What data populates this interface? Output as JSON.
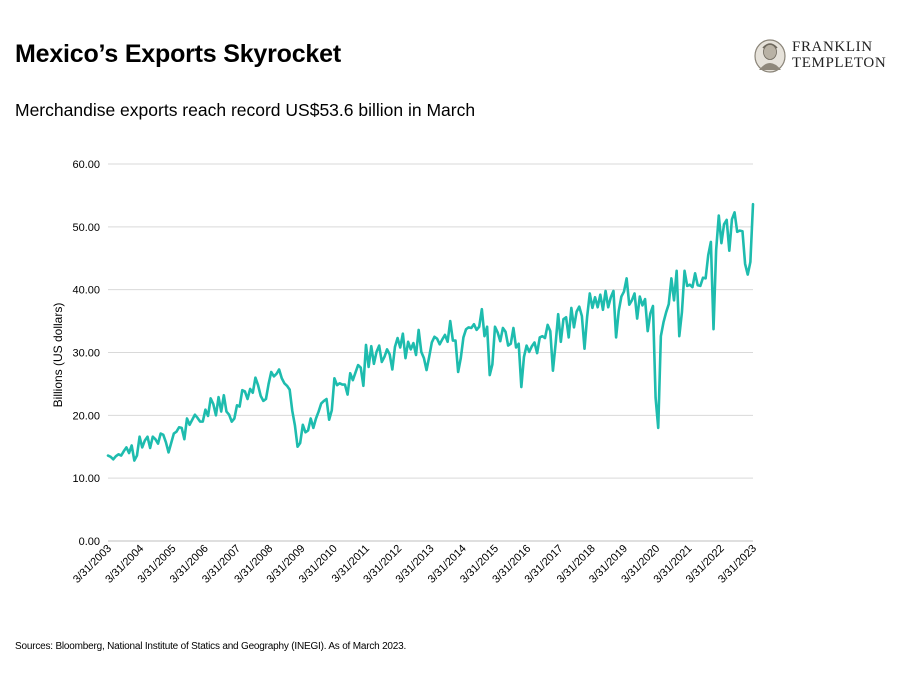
{
  "header": {
    "title": "Mexico’s Exports Skyrocket",
    "subtitle": "Merchandise exports reach record US$53.6 billion in March"
  },
  "logo": {
    "line1": "FRANKLIN",
    "line2": "TEMPLETON",
    "icon": "franklin-portrait-icon"
  },
  "footer": {
    "source": "Sources: Bloomberg, National Institute of Statics and Geography (INEGI). As of March 2023."
  },
  "colors": {
    "line": "#1ebcae",
    "grid": "#d9d9d9",
    "axis": "#bfbfbf"
  },
  "chart_data": {
    "type": "line",
    "title": "",
    "xlabel": "",
    "ylabel": "Billions (US dollars)",
    "ylim": [
      0,
      60
    ],
    "yticks": [
      "0.00",
      "10.00",
      "20.00",
      "30.00",
      "40.00",
      "50.00",
      "60.00"
    ],
    "grid": true,
    "x_start": "3/31/2003",
    "x_end": "3/31/2023",
    "frequency": "monthly",
    "xtick_labels": [
      "3/31/2003",
      "3/31/2004",
      "3/31/2005",
      "3/31/2006",
      "3/31/2007",
      "3/31/2008",
      "3/31/2009",
      "3/31/2010",
      "3/31/2011",
      "3/31/2012",
      "3/31/2013",
      "3/31/2014",
      "3/31/2015",
      "3/31/2016",
      "3/31/2017",
      "3/31/2018",
      "3/31/2019",
      "3/31/2020",
      "3/31/2021",
      "3/31/2022",
      "3/31/2023"
    ],
    "series": [
      {
        "name": "Merchandise exports",
        "values": [
          13.6,
          13.4,
          13.0,
          13.5,
          13.8,
          13.6,
          14.3,
          14.9,
          14.0,
          15.2,
          12.8,
          13.6,
          16.6,
          14.9,
          16.0,
          16.6,
          14.8,
          16.6,
          16.2,
          15.5,
          17.1,
          16.9,
          15.7,
          14.1,
          15.6,
          17.1,
          17.4,
          18.1,
          18.0,
          16.2,
          19.5,
          18.5,
          19.3,
          20.1,
          19.6,
          19.0,
          19.0,
          20.9,
          19.9,
          22.7,
          21.8,
          20.0,
          22.9,
          20.6,
          23.2,
          20.6,
          20.1,
          19.0,
          19.5,
          21.6,
          21.4,
          24.0,
          23.8,
          22.6,
          24.2,
          23.6,
          26.0,
          24.8,
          23.1,
          22.3,
          22.6,
          25.0,
          26.9,
          26.2,
          26.6,
          27.3,
          25.9,
          25.1,
          24.7,
          24.1,
          20.7,
          18.4,
          15.0,
          15.6,
          18.5,
          17.3,
          17.6,
          19.5,
          18.0,
          19.5,
          20.6,
          21.9,
          22.3,
          22.6,
          19.3,
          20.8,
          25.9,
          24.8,
          25.1,
          24.9,
          24.9,
          23.3,
          26.7,
          25.6,
          26.8,
          28.0,
          27.6,
          24.7,
          31.2,
          27.7,
          31.0,
          28.2,
          30.1,
          31.1,
          28.5,
          29.3,
          30.5,
          29.7,
          27.3,
          30.9,
          32.3,
          30.8,
          33.0,
          29.1,
          31.7,
          30.5,
          31.5,
          29.6,
          33.6,
          30.1,
          29.1,
          27.2,
          29.3,
          31.6,
          32.5,
          32.2,
          31.3,
          32.1,
          32.8,
          31.7,
          35.0,
          31.9,
          31.9,
          26.9,
          29.1,
          32.4,
          33.7,
          34.0,
          33.9,
          34.5,
          33.6,
          34.1,
          36.9,
          32.6,
          34.1,
          26.4,
          28.1,
          34.1,
          33.2,
          31.8,
          33.9,
          33.3,
          31.1,
          31.4,
          33.9,
          30.8,
          31.4,
          24.5,
          29.3,
          31.1,
          30.1,
          31.0,
          31.6,
          29.9,
          32.4,
          32.6,
          32.3,
          34.4,
          33.4,
          27.1,
          31.3,
          36.1,
          31.7,
          35.3,
          35.6,
          32.4,
          37.1,
          34.0,
          36.5,
          37.3,
          35.8,
          30.6,
          35.7,
          39.4,
          37.1,
          38.8,
          37.2,
          39.2,
          36.8,
          39.8,
          37.2,
          38.8,
          39.8,
          32.4,
          36.6,
          38.9,
          39.7,
          41.8,
          37.6,
          38.3,
          39.4,
          35.4,
          38.9,
          37.5,
          38.5,
          33.4,
          36.2,
          37.4,
          22.8,
          18.0,
          32.6,
          34.8,
          36.4,
          37.7,
          41.8,
          38.3,
          43.0,
          32.6,
          36.4,
          43.0,
          40.6,
          40.8,
          40.4,
          42.6,
          40.7,
          40.6,
          41.9,
          41.8,
          45.5,
          47.6,
          33.7,
          46.3,
          51.8,
          47.4,
          50.4,
          51.1,
          46.2,
          51.2,
          52.3,
          49.2,
          49.4,
          49.3,
          44.1,
          42.4,
          44.4,
          53.6
        ]
      }
    ]
  }
}
